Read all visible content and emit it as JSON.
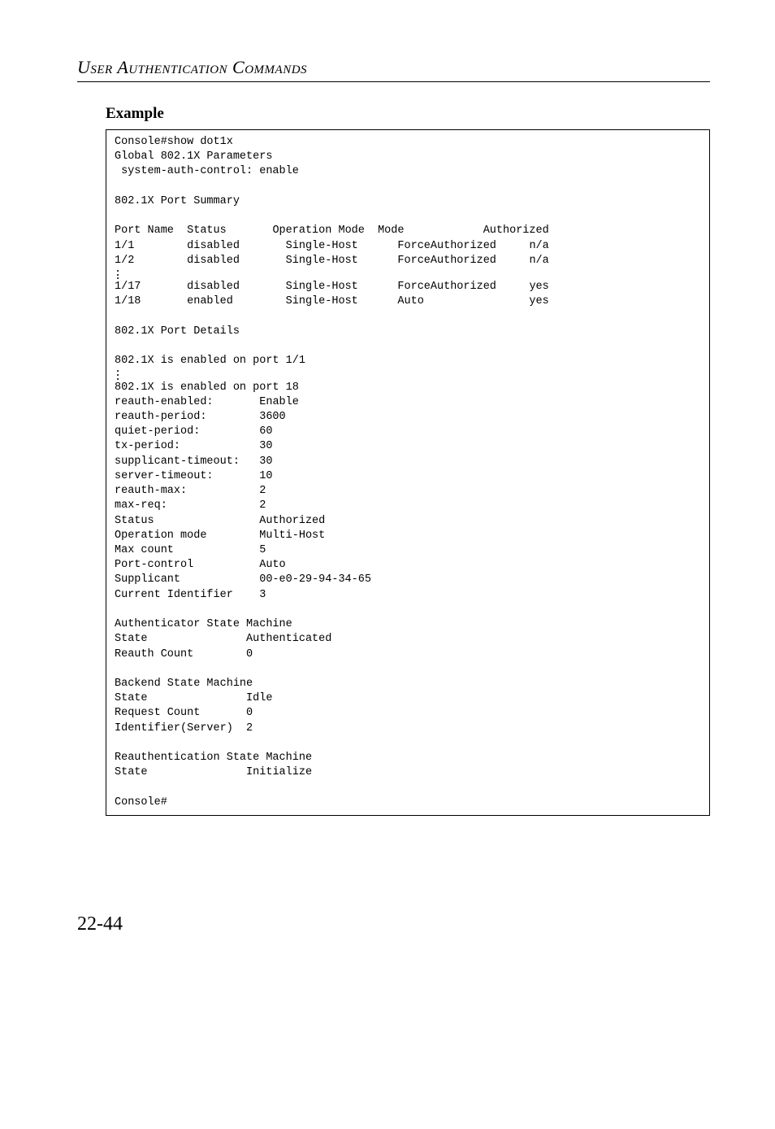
{
  "header": "User Authentication Commands",
  "example_heading": "Example",
  "page_number": "22-44",
  "code": {
    "line01": "Console#show dot1x",
    "line02": "Global 802.1X Parameters",
    "line03": " system-auth-control: enable",
    "line04": "",
    "line05": "802.1X Port Summary",
    "line06": "",
    "summary": {
      "header": {
        "c1": "Port Name",
        "c2": "Status",
        "c3": "Operation Mode",
        "c4": "Mode",
        "c5": "Authorized"
      },
      "rows": [
        {
          "c1": "1/1",
          "c2": "disabled",
          "c3": "Single-Host",
          "c4": "ForceAuthorized",
          "c5": "n/a"
        },
        {
          "c1": "1/2",
          "c2": "disabled",
          "c3": "Single-Host",
          "c4": "ForceAuthorized",
          "c5": "n/a"
        },
        {
          "c1": "1/17",
          "c2": "disabled",
          "c3": "Single-Host",
          "c4": "ForceAuthorized",
          "c5": "yes"
        },
        {
          "c1": "1/18",
          "c2": "enabled",
          "c3": "Single-Host",
          "c4": "Auto",
          "c5": "yes"
        }
      ]
    },
    "line_pd": "802.1X Port Details",
    "line_en1": "802.1X is enabled on port 1/1",
    "line_en18": "802.1X is enabled on port 18",
    "details": [
      {
        "k": "reauth-enabled:",
        "v": "Enable"
      },
      {
        "k": "reauth-period:",
        "v": "3600"
      },
      {
        "k": "quiet-period:",
        "v": "60"
      },
      {
        "k": "tx-period:",
        "v": "30"
      },
      {
        "k": "supplicant-timeout:",
        "v": "30"
      },
      {
        "k": "server-timeout:",
        "v": "10"
      },
      {
        "k": "reauth-max:",
        "v": "2"
      },
      {
        "k": "max-req:",
        "v": "2"
      },
      {
        "k": "Status",
        "v": "Authorized"
      },
      {
        "k": "Operation mode",
        "v": "Multi-Host"
      },
      {
        "k": "Max count",
        "v": "5"
      },
      {
        "k": "Port-control",
        "v": "Auto"
      },
      {
        "k": "Supplicant",
        "v": "00-e0-29-94-34-65"
      },
      {
        "k": "Current Identifier",
        "v": "3"
      }
    ],
    "auth_sm_title": "Authenticator State Machine",
    "auth_sm": [
      {
        "k": "State",
        "v": "Authenticated"
      },
      {
        "k": "Reauth Count",
        "v": "0"
      }
    ],
    "backend_sm_title": "Backend State Machine",
    "backend_sm": [
      {
        "k": "State",
        "v": "Idle"
      },
      {
        "k": "Request Count",
        "v": "0"
      },
      {
        "k": "Identifier(Server)",
        "v": "2"
      }
    ],
    "reauth_sm_title": "Reauthentication State Machine",
    "reauth_sm": [
      {
        "k": "State",
        "v": "Initialize"
      }
    ],
    "prompt": "Console#"
  }
}
